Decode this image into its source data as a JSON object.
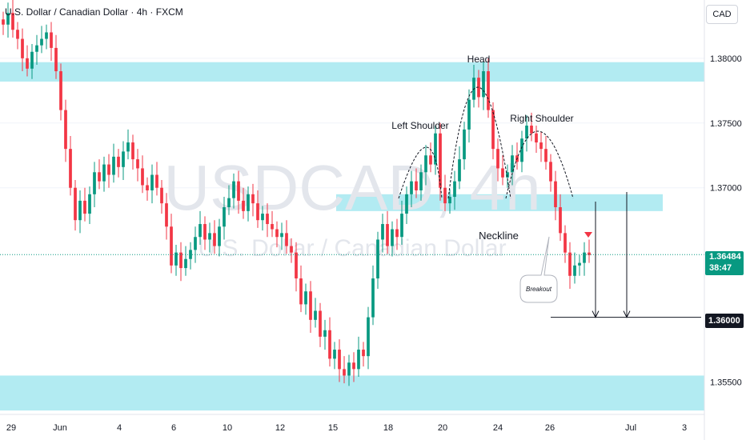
{
  "header": {
    "title": "U.S. Dollar / Canadian Dollar · 4h · FXCM"
  },
  "currency_button": "CAD",
  "watermark": {
    "symbol": "USDCAD, 4h",
    "name": "U.S. Dollar / Canadian Dollar"
  },
  "price_scale": {
    "ticks": [
      "1.38000",
      "1.37500",
      "1.37000",
      "1.35500"
    ],
    "current_price": "1.36484",
    "countdown": "38:47",
    "target_price": "1.36000"
  },
  "time_axis": {
    "labels": [
      "29",
      "Jun",
      "4",
      "6",
      "10",
      "12",
      "15",
      "18",
      "20",
      "24",
      "26",
      "Jul",
      "3"
    ]
  },
  "annotations": {
    "head": "Head",
    "left_shoulder": "Left Shoulder",
    "right_shoulder": "Right Shoulder",
    "neckline": "Neckline",
    "breakout": "Breakout"
  },
  "colors": {
    "up": "#089981",
    "down": "#f23645",
    "zone": "#b2ebf2",
    "grid": "#f0f3fa",
    "text": "#131722"
  },
  "chart_data": {
    "type": "candlestick",
    "symbol": "USDCAD",
    "interval": "4h",
    "ylim": [
      1.3525,
      1.3845
    ],
    "y_ticks": [
      1.38,
      1.375,
      1.37,
      1.355
    ],
    "current_price": 1.36484,
    "target_price": 1.36,
    "zones": [
      {
        "from": 1.3782,
        "to": 1.3797
      },
      {
        "from": 1.3682,
        "to": 1.3695
      },
      {
        "from": 1.3528,
        "to": 1.3555
      }
    ],
    "close": [
      1.3826,
      1.3835,
      1.3822,
      1.3815,
      1.38,
      1.3792,
      1.3805,
      1.381,
      1.3815,
      1.382,
      1.3808,
      1.379,
      1.376,
      1.373,
      1.37,
      1.3675,
      1.369,
      1.368,
      1.3695,
      1.3712,
      1.3705,
      1.3718,
      1.371,
      1.3724,
      1.3716,
      1.3728,
      1.3735,
      1.3722,
      1.3715,
      1.3702,
      1.3698,
      1.371,
      1.37,
      1.3688,
      1.367,
      1.364,
      1.365,
      1.3638,
      1.3645,
      1.3652,
      1.3662,
      1.3672,
      1.366,
      1.3665,
      1.3655,
      1.367,
      1.3685,
      1.3692,
      1.3705,
      1.369,
      1.3682,
      1.3695,
      1.3688,
      1.3675,
      1.368,
      1.3672,
      1.3668,
      1.3662,
      1.3665,
      1.3655,
      1.365,
      1.363,
      1.361,
      1.362,
      1.3598,
      1.3605,
      1.3585,
      1.359,
      1.3568,
      1.3575,
      1.356,
      1.3555,
      1.3565,
      1.356,
      1.3575,
      1.357,
      1.36,
      1.363,
      1.366,
      1.3672,
      1.3655,
      1.3668,
      1.3662,
      1.368,
      1.3695,
      1.3705,
      1.3698,
      1.3712,
      1.3725,
      1.3718,
      1.3742,
      1.37,
      1.3688,
      1.3693,
      1.3705,
      1.3722,
      1.3745,
      1.3768,
      1.3785,
      1.377,
      1.379,
      1.376,
      1.373,
      1.3715,
      1.3708,
      1.3712,
      1.3725,
      1.372,
      1.3738,
      1.3748,
      1.3742,
      1.3735,
      1.373,
      1.372,
      1.3705,
      1.3685,
      1.3665,
      1.365,
      1.3632,
      1.364,
      1.3642,
      1.365,
      1.3648
    ]
  }
}
